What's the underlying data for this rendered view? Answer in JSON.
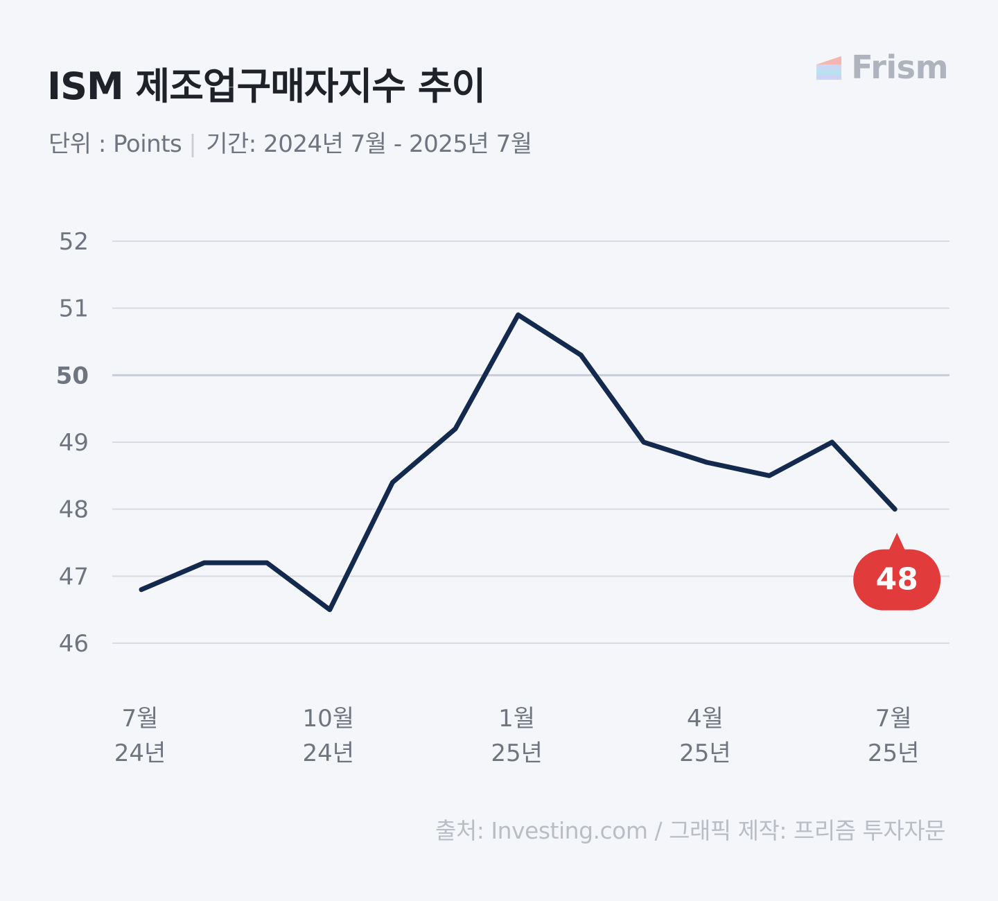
{
  "header": {
    "title": "ISM 제조업구매자지수 추이",
    "unit_text": "단위 : Points",
    "period_text": "기간: 2024년 7월 - 2025년 7월",
    "brand": "Frism",
    "brand_icon": "frism-logo-icon"
  },
  "chart_data": {
    "type": "line",
    "yticks": [
      46,
      47,
      48,
      49,
      50,
      51,
      52
    ],
    "ylim": [
      46,
      52
    ],
    "grid": true,
    "x_labels": [
      {
        "month": "7월",
        "year": "24년"
      },
      {
        "month": "10월",
        "year": "24년"
      },
      {
        "month": "1월",
        "year": "25년"
      },
      {
        "month": "4월",
        "year": "25년"
      },
      {
        "month": "7월",
        "year": "25년"
      }
    ],
    "values": [
      46.8,
      47.2,
      47.2,
      46.5,
      48.4,
      49.2,
      50.9,
      50.3,
      49.0,
      48.7,
      48.5,
      49.0,
      48.0
    ],
    "callout": "48",
    "colors": {
      "line": "#132a4e",
      "callout": "#e23b3b",
      "grid": "#d8dbe2",
      "tick": "#6e7480"
    }
  },
  "footer": {
    "source": "출처: Investing.com  / 그래픽 제작: 프리즘 투자자문"
  }
}
